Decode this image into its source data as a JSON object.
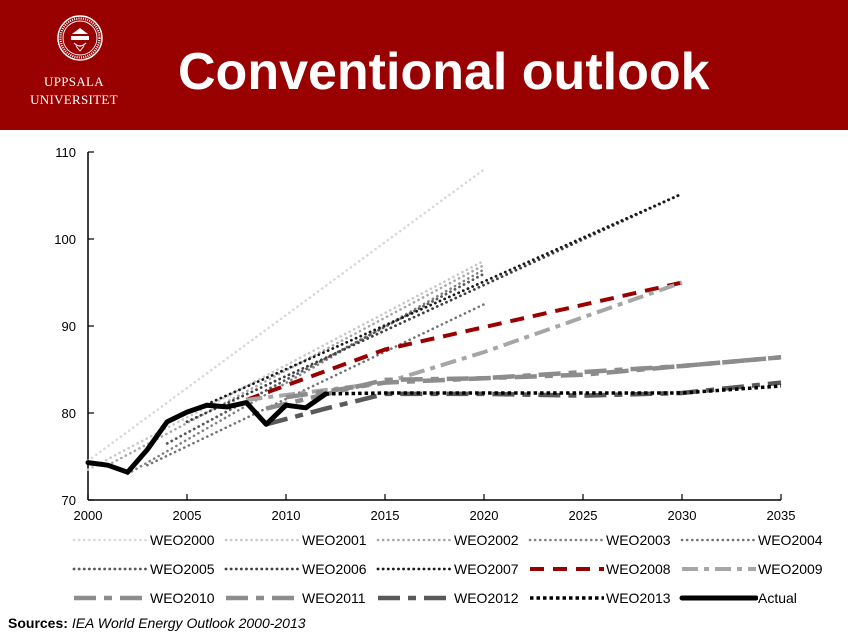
{
  "header": {
    "logo_text_line1": "UPPSALA",
    "logo_text_line2": "UNIVERSITET",
    "title": "Conventional outlook",
    "background_color": "#990000"
  },
  "sources": {
    "label": "Sources:",
    "text": "IEA World Energy Outlook 2000-2013"
  },
  "chart_data": {
    "type": "line",
    "title": "",
    "xlabel": "",
    "ylabel": "",
    "xlim": [
      2000,
      2035
    ],
    "ylim": [
      70,
      110
    ],
    "x_ticks": [
      "2000",
      "2005",
      "2010",
      "2015",
      "2020",
      "2025",
      "2030",
      "2035"
    ],
    "y_ticks": [
      "70",
      "80",
      "90",
      "100",
      "110"
    ],
    "grid": false,
    "legend_position": "bottom",
    "series": [
      {
        "name": "WEO2000",
        "color": "#d9d9d9",
        "style": "dotted-round",
        "x": [
          2000,
          2020
        ],
        "y": [
          74.5,
          108
        ]
      },
      {
        "name": "WEO2001",
        "color": "#c8c8c8",
        "style": "dotted-round",
        "x": [
          2000,
          2020
        ],
        "y": [
          73.5,
          97.5
        ]
      },
      {
        "name": "WEO2002",
        "color": "#a6a6a6",
        "style": "dotted-round",
        "x": [
          2001,
          2020
        ],
        "y": [
          74,
          97
        ]
      },
      {
        "name": "WEO2003",
        "color": "#808080",
        "style": "dotted-round",
        "x": [
          2002,
          2020
        ],
        "y": [
          73,
          96.5
        ]
      },
      {
        "name": "WEO2004",
        "color": "#737373",
        "style": "dotted-round",
        "x": [
          2003,
          2020
        ],
        "y": [
          74,
          92.5
        ]
      },
      {
        "name": "WEO2005",
        "color": "#595959",
        "style": "dotted-diamond",
        "x": [
          2004,
          2020
        ],
        "y": [
          76.5,
          96
        ]
      },
      {
        "name": "WEO2006",
        "color": "#404040",
        "style": "dotted-diamond",
        "x": [
          2005,
          2030
        ],
        "y": [
          79,
          105.2
        ]
      },
      {
        "name": "WEO2007",
        "color": "#1a1a1a",
        "style": "dotted-diamond",
        "x": [
          2006,
          2030
        ],
        "y": [
          81,
          105.2
        ]
      },
      {
        "name": "WEO2008",
        "color": "#990000",
        "style": "dash",
        "x": [
          2008,
          2015,
          2030
        ],
        "y": [
          81.5,
          87.3,
          95
        ]
      },
      {
        "name": "WEO2009",
        "color": "#a6a6a6",
        "style": "dash-dot",
        "x": [
          2008,
          2015,
          2020,
          2030
        ],
        "y": [
          81.5,
          83.5,
          87,
          95
        ]
      },
      {
        "name": "WEO2010",
        "color": "#8c8c8c",
        "style": "long-dash",
        "x": [
          2009,
          2015,
          2020,
          2030,
          2035
        ],
        "y": [
          80.5,
          83.8,
          84,
          85.4,
          86.4
        ]
      },
      {
        "name": "WEO2011",
        "color": "#8c8c8c",
        "style": "long-dash",
        "x": [
          2010,
          2015,
          2020,
          2025,
          2030,
          2035
        ],
        "y": [
          81.8,
          83.5,
          84,
          84.4,
          85.4,
          86.4
        ]
      },
      {
        "name": "WEO2012",
        "color": "#595959",
        "style": "long-dash",
        "x": [
          2009,
          2012,
          2015,
          2020,
          2025,
          2030,
          2035
        ],
        "y": [
          78.7,
          80.5,
          82.2,
          82.2,
          82,
          82.3,
          83.5
        ]
      },
      {
        "name": "WEO2013",
        "color": "#000000",
        "style": "square-dot",
        "x": [
          2012,
          2015,
          2020,
          2025,
          2030,
          2035
        ],
        "y": [
          82.2,
          82.3,
          82.3,
          82.3,
          82.3,
          83.1
        ]
      },
      {
        "name": "Actual",
        "color": "#000000",
        "style": "solid",
        "x": [
          2000,
          2001,
          2002,
          2003,
          2004,
          2005,
          2006,
          2007,
          2008,
          2009,
          2010,
          2011,
          2012
        ],
        "y": [
          74.3,
          74,
          73.2,
          75.8,
          79,
          80.1,
          80.9,
          80.7,
          81.2,
          78.7,
          80.9,
          80.6,
          82.2
        ]
      }
    ]
  }
}
